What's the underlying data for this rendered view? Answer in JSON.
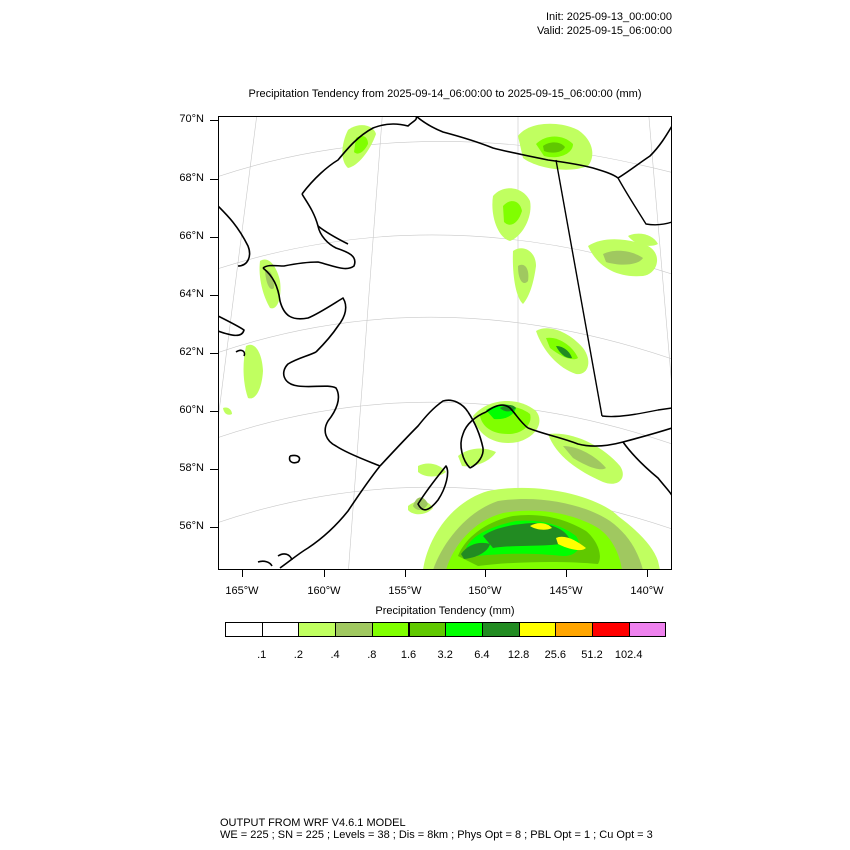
{
  "header": {
    "init": "Init: 2025-09-13_00:00:00",
    "valid": "Valid: 2025-09-15_06:00:00"
  },
  "plot": {
    "title": "Precipitation Tendency from 2025-09-14_06:00:00 to 2025-09-15_06:00:00   (mm)",
    "lat_labels": [
      "70°N",
      "68°N",
      "66°N",
      "64°N",
      "62°N",
      "60°N",
      "58°N",
      "56°N"
    ],
    "lon_labels": [
      "165°W",
      "160°W",
      "155°W",
      "150°W",
      "145°W",
      "140°W"
    ]
  },
  "colorbar": {
    "title": "Precipitation Tendency  (mm)",
    "colors": [
      "#ffffff",
      "#ffffff",
      "#c0ff60",
      "#a0c860",
      "#80ff00",
      "#60c800",
      "#00ff00",
      "#228b22",
      "#ffff00",
      "#ffa500",
      "#ff0000",
      "#ee82ee"
    ],
    "labels": [
      ".1",
      ".2",
      ".4",
      ".8",
      "1.6",
      "3.2",
      "6.4",
      "12.8",
      "25.6",
      "51.2",
      "102.4"
    ]
  },
  "footer": {
    "line1": "OUTPUT FROM WRF V4.6.1 MODEL",
    "line2": "WE = 225 ; SN = 225 ; Levels = 38 ; Dis = 8km ; Phys Opt = 8 ; PBL Opt = 1 ; Cu Opt = 3"
  },
  "map_colors": {
    "light_green": "#c0ff60",
    "olive_green": "#a0c860",
    "lime": "#80ff00",
    "mid_green": "#60c800",
    "bright_green": "#00ff00",
    "dark_green": "#228b22",
    "yellow": "#ffff00"
  }
}
